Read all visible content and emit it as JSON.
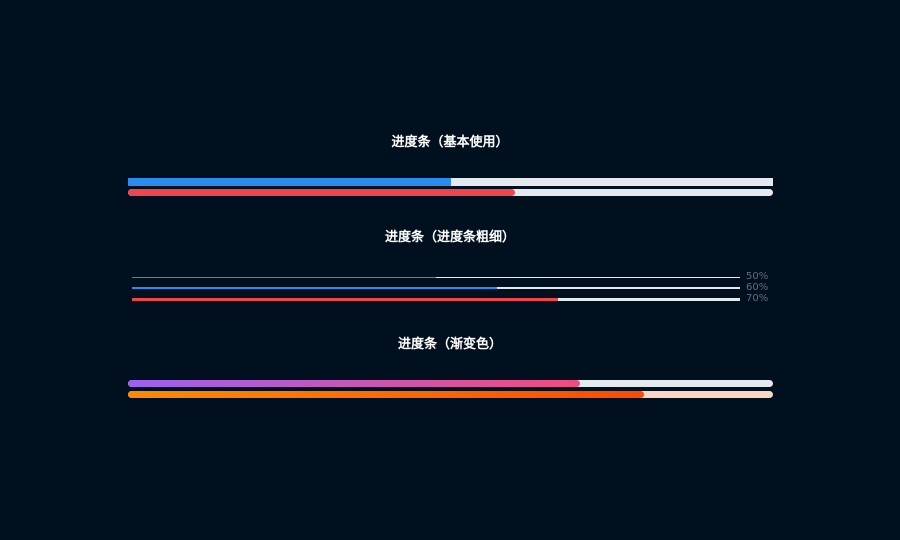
{
  "sections": [
    {
      "title": "进度条（基本使用）",
      "bars": [
        {
          "percent": 50,
          "fill_color": "#2a8cec",
          "track_color": "#e4e9ef",
          "rounded": false
        },
        {
          "percent": 60,
          "fill_color": "#f0454f",
          "track_color": "#e4e9ef",
          "rounded": true
        }
      ]
    },
    {
      "title": "进度条（进度条粗细）",
      "bars": [
        {
          "percent": 50,
          "label": "50%",
          "fill_color": "#2a8cec",
          "track_color": "#e4e9ef"
        },
        {
          "percent": 60,
          "label": "60%",
          "fill_color": "#2a8cec",
          "track_color": "#e4e9ef"
        },
        {
          "percent": 70,
          "label": "70%",
          "fill_color": "#f0454f",
          "track_color": "#e4e9ef"
        }
      ]
    },
    {
      "title": "进度条（渐变色）",
      "bars": [
        {
          "percent": 70,
          "gradient": [
            "#9b62ee",
            "#f04c7d"
          ],
          "track_color": "#e4e9ef"
        },
        {
          "percent": 80,
          "gradient": [
            "#ff8a00",
            "#ff4a00"
          ],
          "track_color": "#fdd5c2"
        }
      ]
    }
  ]
}
